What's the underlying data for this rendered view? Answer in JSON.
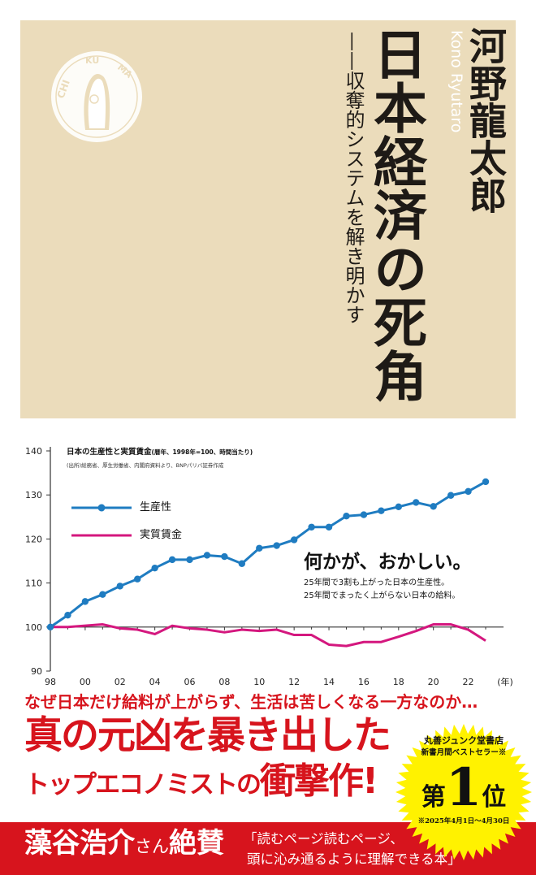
{
  "cover": {
    "background_color": "#ebdcbb",
    "title": "日本経済の死角",
    "subtitle": "——収奪的システムを解き明かす",
    "author": "河野龍太郎",
    "author_romaji": "Kono Ryutaro",
    "publisher_logo": "CHI KU MA"
  },
  "chart_data": {
    "type": "line",
    "title": "日本の生産性と実質賃金",
    "title_note": "(暦年、1998年=100、時間当たり)",
    "source": "(出所)総務省、厚生労働省、内閣府資料より、BNPパリバ証券作成",
    "x": [
      1998,
      1999,
      2000,
      2001,
      2002,
      2003,
      2004,
      2005,
      2006,
      2007,
      2008,
      2009,
      2010,
      2011,
      2012,
      2013,
      2014,
      2015,
      2016,
      2017,
      2018,
      2019,
      2020,
      2021,
      2022,
      2023
    ],
    "x_tick_labels": [
      "98",
      "00",
      "02",
      "04",
      "06",
      "08",
      "10",
      "12",
      "14",
      "16",
      "18",
      "20",
      "22"
    ],
    "x_unit": "(年)",
    "ylim": [
      90,
      140
    ],
    "y_ticks": [
      "90",
      "100",
      "110",
      "120",
      "130",
      "140"
    ],
    "grid": false,
    "legend": "top-left",
    "series": [
      {
        "name": "生産性",
        "color": "#1f7cc1",
        "markers": true,
        "values": [
          100,
          102.7,
          105.8,
          107.4,
          109.3,
          110.9,
          113.4,
          115.3,
          115.3,
          116.3,
          116.0,
          114.4,
          117.9,
          118.5,
          119.8,
          122.7,
          122.7,
          125.2,
          125.5,
          126.4,
          127.3,
          128.3,
          127.4,
          129.9,
          130.8,
          133.0
        ]
      },
      {
        "name": "実質賃金",
        "color": "#d4177e",
        "markers": false,
        "values": [
          100,
          100,
          100.3,
          100.6,
          99.7,
          99.4,
          98.4,
          100.3,
          99.7,
          99.4,
          98.8,
          99.4,
          99.1,
          99.4,
          98.2,
          98.2,
          96.0,
          95.7,
          96.6,
          96.6,
          97.8,
          99.1,
          100.6,
          100.6,
          99.4,
          96.9
        ]
      }
    ],
    "annotation": {
      "headline": "何かが、おかしい。",
      "line1": "25年間で3割も上がった日本の生産性。",
      "line2": "25年間でまったく上がらない日本の給料。"
    }
  },
  "obi": {
    "accent_color": "#d7141d",
    "question": "なぜ日本だけ給料が上がらず、生活は苦しくなる一方なのか…",
    "headline1": "真の元凶を暴き出した",
    "headline2_a": "トップエコノミストの",
    "headline2_b": "衝撃作!",
    "endorser_name": "藻谷浩介",
    "endorser_honorific": "さん",
    "endorser_verb": "絶賛",
    "quote_line1": "「読むページ読むページ、",
    "quote_line2": "頭に沁み通るように理解できる本」",
    "badge": {
      "color": "#fff200",
      "store": "丸善ジュンク堂書店",
      "category": "新書月間ベストセラー※",
      "rank_prefix": "第",
      "rank": "1",
      "rank_suffix": "位",
      "period": "※2025年4月1日～4月30日"
    }
  }
}
